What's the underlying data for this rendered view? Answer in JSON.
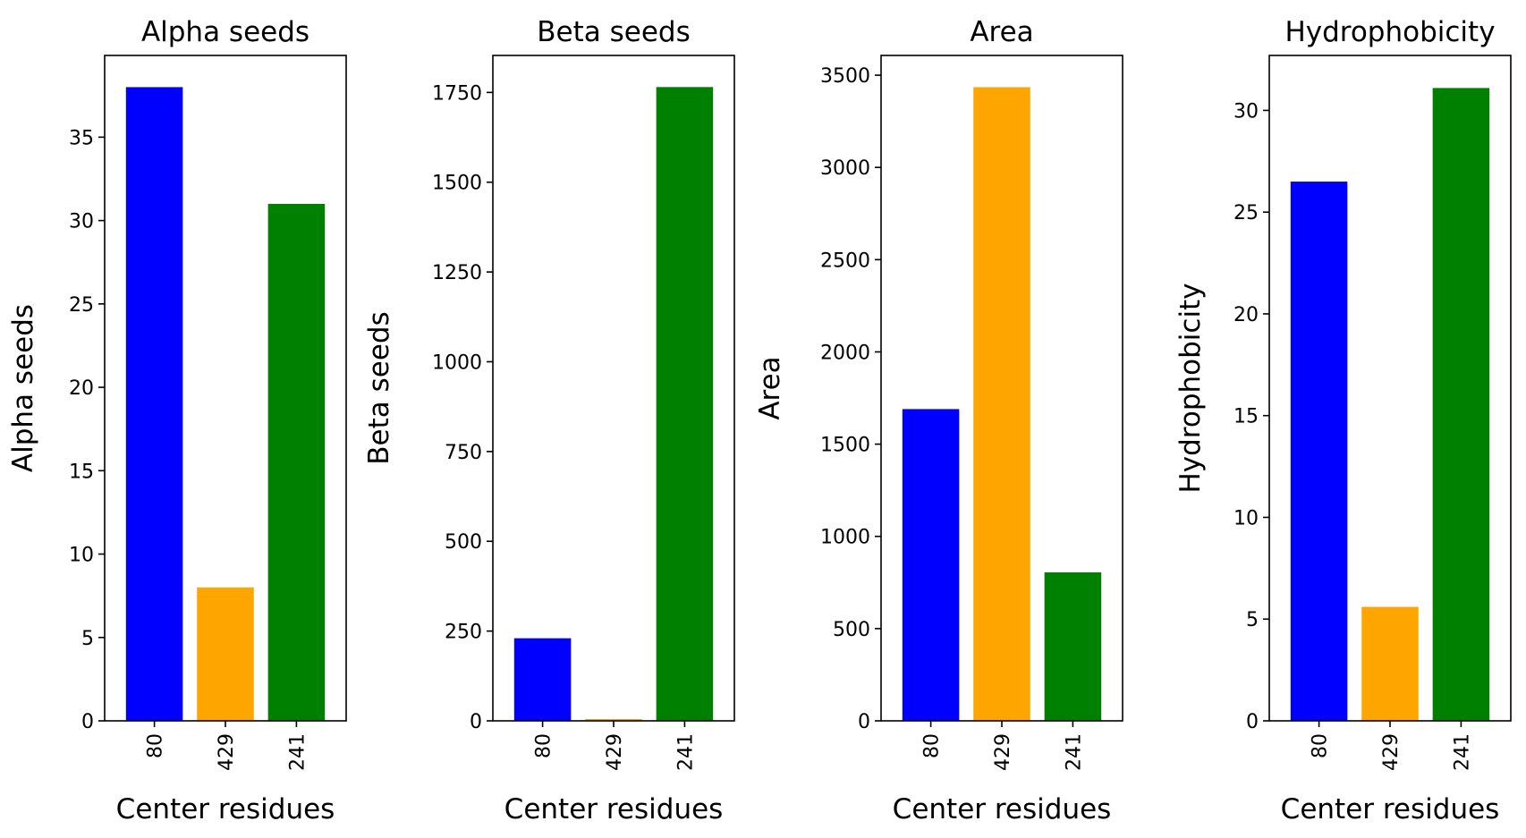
{
  "colors": [
    "#0000ff",
    "#ffa500",
    "#008000"
  ],
  "chart_data": [
    {
      "type": "bar",
      "title": "Alpha seeds",
      "xlabel": "Center residues",
      "ylabel": "Alpha seeds",
      "categories": [
        "80",
        "429",
        "241"
      ],
      "values": [
        38,
        8,
        31
      ],
      "ylim": [
        0,
        39.9
      ],
      "yticks": [
        0,
        5,
        10,
        15,
        20,
        25,
        30,
        35
      ],
      "grid": false
    },
    {
      "type": "bar",
      "title": "Beta seeds",
      "xlabel": "Center residues",
      "ylabel": "Beta seeds",
      "categories": [
        "80",
        "429",
        "241"
      ],
      "values": [
        230,
        5,
        1765
      ],
      "ylim": [
        0,
        1853
      ],
      "yticks": [
        0,
        250,
        500,
        750,
        1000,
        1250,
        1500,
        1750
      ],
      "grid": false
    },
    {
      "type": "bar",
      "title": "Area",
      "xlabel": "Center residues",
      "ylabel": "Area",
      "categories": [
        "80",
        "429",
        "241"
      ],
      "values": [
        1690,
        3435,
        805
      ],
      "ylim": [
        0,
        3607
      ],
      "yticks": [
        0,
        500,
        1000,
        1500,
        2000,
        2500,
        3000,
        3500
      ],
      "grid": false
    },
    {
      "type": "bar",
      "title": "Hydrophobicity",
      "xlabel": "Center residues",
      "ylabel": "Hydrophobicity",
      "categories": [
        "80",
        "429",
        "241"
      ],
      "values": [
        26.5,
        5.6,
        31.1
      ],
      "ylim": [
        0,
        32.7
      ],
      "yticks": [
        0,
        5,
        10,
        15,
        20,
        25,
        30
      ],
      "grid": false
    }
  ]
}
